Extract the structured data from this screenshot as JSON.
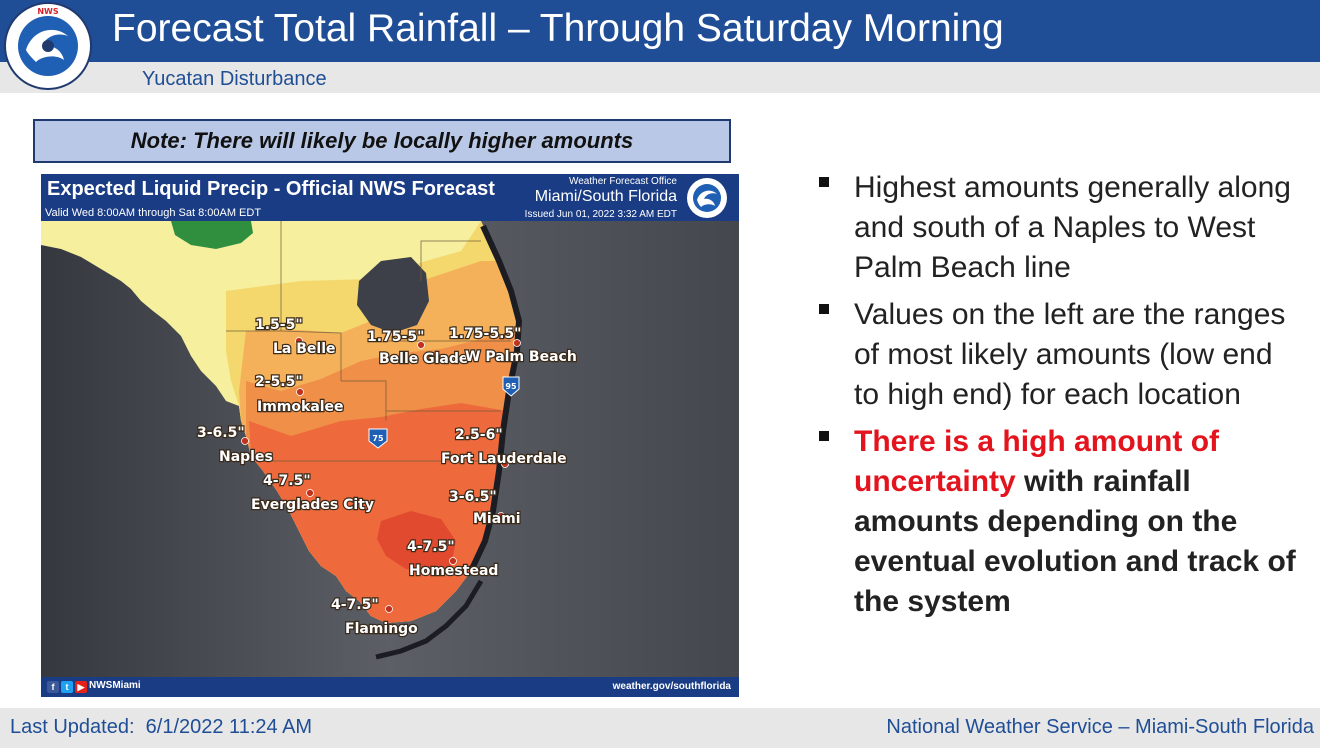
{
  "header": {
    "title": "Forecast Total Rainfall – Through Saturday Morning",
    "subtitle": "Yucatan Disturbance",
    "logo_text": "NATIONAL WEATHER SERVICE"
  },
  "note": "Note: There will likely be locally higher amounts",
  "map": {
    "title": "Expected Liquid Precip - Official NWS Forecast",
    "valid": "Valid Wed 8:00AM through Sat 8:00AM EDT",
    "office_label": "Weather Forecast Office",
    "office_name": "Miami/South Florida",
    "issued": "Issued Jun 01, 2022 3:32 AM EDT",
    "social_handle": "NWSMiami",
    "url": "weather.gov/southflorida",
    "highway_75": "75",
    "highway_95": "95",
    "locations": [
      {
        "amount": "1.5-5\"",
        "city": "La Belle"
      },
      {
        "amount": "1.75-5\"",
        "city": "Belle Glade"
      },
      {
        "amount": "1.75-5.5\"",
        "city": "W Palm Beach"
      },
      {
        "amount": "2-5.5\"",
        "city": "Immokalee"
      },
      {
        "amount": "3-6.5\"",
        "city": "Naples"
      },
      {
        "amount": "2.5-6\"",
        "city": "Fort Lauderdale"
      },
      {
        "amount": "4-7.5\"",
        "city": "Everglades City"
      },
      {
        "amount": "3-6.5\"",
        "city": "Miami"
      },
      {
        "amount": "4-7.5\"",
        "city": "Homestead"
      },
      {
        "amount": "4-7.5\"",
        "city": "Flamingo"
      }
    ],
    "colors": {
      "water": "#55585f",
      "light_yellow": "#f6ef9d",
      "yellow": "#f4d86d",
      "light_orange": "#f5b15a",
      "orange": "#f08f48",
      "red_orange": "#ee6a3c",
      "dark_red": "#e24a2f",
      "green": "#2f8f3f",
      "lake": "#3d4048"
    }
  },
  "bullets": [
    {
      "text": "Highest amounts generally along and south of a Naples to West Palm Beach line"
    },
    {
      "text": "Values on the left are the ranges of most likely amounts (low end to high end) for each location"
    },
    {
      "red_text": "There is a high amount of uncertainty",
      "bold_text": " with rainfall amounts depending on the eventual evolution and track of the system"
    }
  ],
  "footer": {
    "updated": "Last Updated:  6/1/2022 11:24 AM",
    "credit": "National Weather Service – Miami-South Florida"
  }
}
